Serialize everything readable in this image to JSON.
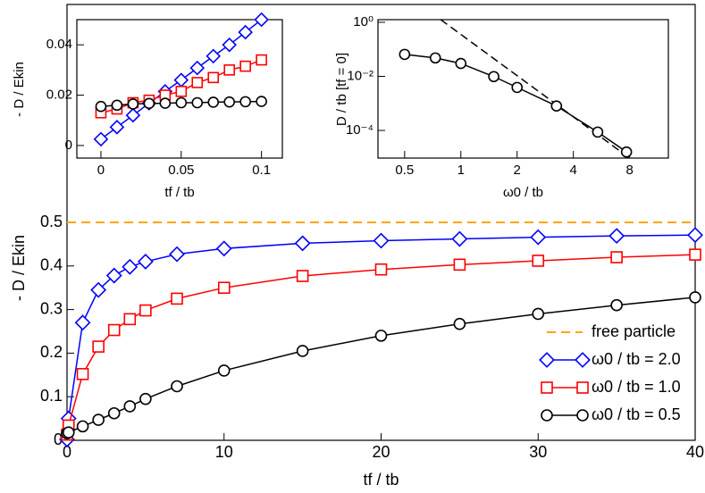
{
  "chart_data": [
    {
      "type": "line",
      "xlabel": "tf / tb",
      "ylabel": "- D / Ekin",
      "x": [
        0,
        0.1,
        1,
        2,
        3,
        4,
        5,
        7,
        10,
        15,
        20,
        25,
        30,
        35,
        40
      ],
      "xlim": [
        0,
        40
      ],
      "ylim": [
        0,
        1
      ],
      "xticks": [
        0,
        10,
        20,
        30,
        40
      ],
      "yticks": [
        0,
        0.1,
        0.2,
        0.3,
        0.4,
        0.5
      ],
      "reference_line": {
        "name": "free particle",
        "value": 0.5,
        "color": "#ffa500"
      },
      "legend": "lower right",
      "series": [
        {
          "name": "ω0 / tb = 2.0",
          "color": "#0000ff",
          "marker": "diamond",
          "values": [
            0.002,
            0.05,
            0.27,
            0.345,
            0.378,
            0.398,
            0.41,
            0.427,
            0.44,
            0.452,
            0.458,
            0.462,
            0.466,
            0.469,
            0.471
          ]
        },
        {
          "name": "ω0 / tb = 1.0",
          "color": "#ff0000",
          "marker": "square",
          "values": [
            0.013,
            0.034,
            0.152,
            0.215,
            0.253,
            0.278,
            0.298,
            0.325,
            0.35,
            0.377,
            0.392,
            0.403,
            0.412,
            0.42,
            0.426
          ]
        },
        {
          "name": "ω0 / tb = 0.5",
          "color": "#000000",
          "marker": "circle",
          "values": [
            0.016,
            0.018,
            0.032,
            0.047,
            0.062,
            0.078,
            0.095,
            0.124,
            0.16,
            0.205,
            0.24,
            0.267,
            0.29,
            0.31,
            0.328
          ]
        }
      ]
    },
    {
      "type": "line",
      "xlabel": "tf / tb",
      "ylabel": "- D / Ekin",
      "x": [
        0,
        0.01,
        0.02,
        0.03,
        0.04,
        0.05,
        0.06,
        0.07,
        0.08,
        0.09,
        0.1
      ],
      "xlim": [
        -0.015,
        0.113
      ],
      "ylim": [
        -0.005,
        0.05
      ],
      "xticks": [
        0,
        0.05,
        0.1
      ],
      "yticks": [
        0,
        0.02,
        0.04
      ],
      "series": [
        {
          "color": "#0000ff",
          "marker": "diamond",
          "values": [
            0.0025,
            0.0073,
            0.012,
            0.0168,
            0.0215,
            0.026,
            0.0308,
            0.0355,
            0.04,
            0.045,
            0.05
          ]
        },
        {
          "color": "#ff0000",
          "marker": "square",
          "values": [
            0.013,
            0.0145,
            0.017,
            0.018,
            0.02,
            0.0215,
            0.025,
            0.027,
            0.03,
            0.0315,
            0.034
          ]
        },
        {
          "color": "#000000",
          "marker": "circle",
          "values": [
            0.0155,
            0.016,
            0.0165,
            0.0167,
            0.0168,
            0.017,
            0.017,
            0.0172,
            0.0173,
            0.0174,
            0.0175
          ]
        }
      ]
    },
    {
      "type": "line",
      "xlabel": "ω0 / tb",
      "ylabel": "D / tb  [tf = 0]",
      "xscale": "log",
      "yscale": "log",
      "x": [
        0.5,
        0.73,
        1,
        1.5,
        2,
        3.25,
        5.4,
        7.7
      ],
      "xlim": [
        0.36,
        12.9
      ],
      "ylim": [
        9.5e-06,
        1.25
      ],
      "xticks": [
        0.5,
        1,
        2,
        4,
        8
      ],
      "yticks": [
        {
          "value": 1,
          "label": "10⁰"
        },
        {
          "value": 0.01,
          "label": "10⁻²"
        },
        {
          "value": 0.0001,
          "label": "10⁻⁴"
        }
      ],
      "reference_line": {
        "x": [
          0.78,
          8
        ],
        "values": [
          1.25,
          9.5e-06
        ],
        "color": "#000000"
      },
      "series": [
        {
          "color": "#000000",
          "marker": "circle",
          "values": [
            0.065,
            0.048,
            0.03,
            0.0098,
            0.0039,
            0.0008,
            8.7e-05,
            1.6e-05
          ]
        }
      ]
    }
  ]
}
